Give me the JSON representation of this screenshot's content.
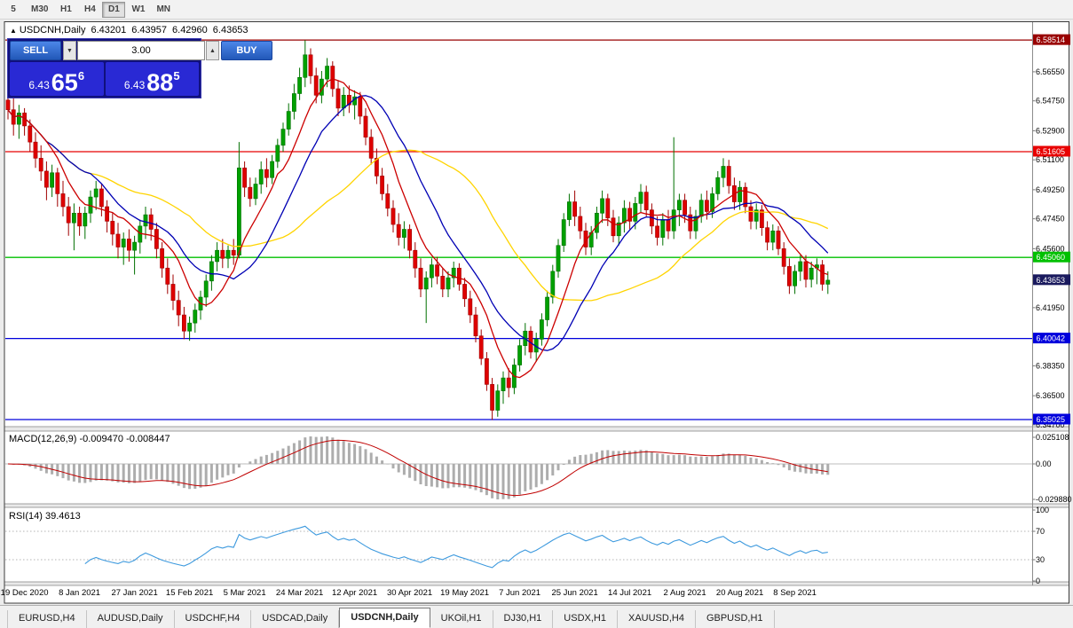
{
  "toolbar": {
    "timeframes": [
      "5",
      "M30",
      "H1",
      "H4",
      "D1",
      "W1",
      "MN"
    ],
    "active": "D1"
  },
  "symbol_header": {
    "icon": "▲",
    "symbol": "USDCNH,Daily",
    "open": "6.43201",
    "high": "6.43957",
    "low": "6.42960",
    "close": "6.43653"
  },
  "trade_panel": {
    "sell_label": "SELL",
    "buy_label": "BUY",
    "volume": "3.00",
    "spin_down": "▼",
    "spin_up": "▲",
    "sell_price": {
      "small": "6.43",
      "big": "65",
      "sup": "6"
    },
    "buy_price": {
      "small": "6.43",
      "big": "88",
      "sup": "5"
    }
  },
  "price_axis": {
    "ticks": [
      "6.56550",
      "6.54750",
      "6.52900",
      "6.51100",
      "6.49250",
      "6.47450",
      "6.45600",
      "6.41950",
      "6.38350",
      "6.36500",
      "6.34700"
    ]
  },
  "hlines": [
    {
      "price": 6.58514,
      "label": "6.58514",
      "color": "#990000"
    },
    {
      "price": 6.51605,
      "label": "6.51605",
      "color": "#E80000"
    },
    {
      "price": 6.4506,
      "label": "6.45060",
      "color": "#00C000"
    },
    {
      "price": 6.40042,
      "label": "6.40042",
      "color": "#0000DC"
    },
    {
      "price": 6.35025,
      "label": "6.35025",
      "color": "#0000DC"
    }
  ],
  "current_price": {
    "value": 6.43653,
    "label": "6.43653"
  },
  "macd": {
    "label": "MACD(12,26,9) -0.009470 -0.008447",
    "axis_labels": [
      "0.025108",
      "0.00",
      "-0.029880"
    ],
    "fast": 12,
    "slow": 26,
    "signal": 9
  },
  "rsi": {
    "label": "RSI(14) 39.4613",
    "axis_labels": [
      "100",
      "70",
      "30",
      "0"
    ],
    "period": 14,
    "levels": [
      70,
      30
    ]
  },
  "date_axis": [
    "19 Dec 2020",
    "8 Jan 2021",
    "27 Jan 2021",
    "15 Feb 2021",
    "5 Mar 2021",
    "24 Mar 2021",
    "12 Apr 2021",
    "30 Apr 2021",
    "19 May 2021",
    "7 Jun 2021",
    "25 Jun 2021",
    "14 Jul 2021",
    "2 Aug 2021",
    "20 Aug 2021",
    "8 Sep 2021"
  ],
  "tabs": {
    "items": [
      "EURUSD,H4",
      "AUDUSD,Daily",
      "USDCHF,H4",
      "USDCAD,Daily",
      "USDCNH,Daily",
      "UKOil,H1",
      "DJ30,H1",
      "USDX,H1",
      "XAUUSD,H4",
      "GBPUSD,H1"
    ],
    "active_index": 4
  },
  "colors": {
    "up_candle": "#00A000",
    "up_candle_border": "#007000",
    "down_candle": "#DE0000",
    "down_candle_border": "#A00000",
    "ma_fast": "#CC0000",
    "ma_mid": "#0000B4",
    "ma_slow": "#FFD400",
    "macd_histogram": "#ADADAD",
    "macd_signal": "#C00000",
    "rsi_line": "#3E9ADE",
    "current_price_box": "#1A1A5E",
    "axis_text": "#000000"
  },
  "chart_data": {
    "type": "candlestick",
    "symbol": "USDCNH",
    "timeframe": "Daily",
    "ohlc_header": {
      "open": 6.43201,
      "high": 6.43957,
      "low": 6.4296,
      "close": 6.43653
    },
    "y_range": {
      "top": 6.5962,
      "bottom": 6.3464
    },
    "x_label_first_index": 3,
    "x_label_every": 10,
    "moving_averages": [
      {
        "name": "MA fast",
        "period": 8,
        "color_key": "ma_fast"
      },
      {
        "name": "MA mid",
        "period": 16,
        "color_key": "ma_mid"
      },
      {
        "name": "MA slow",
        "period": 34,
        "color_key": "ma_slow"
      }
    ],
    "candles": [
      [
        6.548,
        6.553,
        6.536,
        6.542
      ],
      [
        6.542,
        6.549,
        6.526,
        6.533
      ],
      [
        6.533,
        6.545,
        6.524,
        6.54
      ],
      [
        6.54,
        6.543,
        6.526,
        6.532
      ],
      [
        6.532,
        6.536,
        6.516,
        6.522
      ],
      [
        6.522,
        6.528,
        6.506,
        6.512
      ],
      [
        6.512,
        6.52,
        6.498,
        6.504
      ],
      [
        6.504,
        6.51,
        6.486,
        6.494
      ],
      [
        6.494,
        6.508,
        6.488,
        6.503
      ],
      [
        6.503,
        6.506,
        6.482,
        6.49
      ],
      [
        6.49,
        6.498,
        6.476,
        6.482
      ],
      [
        6.482,
        6.488,
        6.464,
        6.472
      ],
      [
        6.472,
        6.484,
        6.455,
        6.478
      ],
      [
        6.478,
        6.482,
        6.464,
        6.47
      ],
      [
        6.47,
        6.482,
        6.462,
        6.478
      ],
      [
        6.478,
        6.492,
        6.472,
        6.488
      ],
      [
        6.488,
        6.498,
        6.48,
        6.493
      ],
      [
        6.493,
        6.496,
        6.476,
        6.482
      ],
      [
        6.482,
        6.486,
        6.466,
        6.473
      ],
      [
        6.473,
        6.478,
        6.458,
        6.465
      ],
      [
        6.465,
        6.472,
        6.45,
        6.457
      ],
      [
        6.457,
        6.466,
        6.446,
        6.462
      ],
      [
        6.462,
        6.468,
        6.448,
        6.455
      ],
      [
        6.455,
        6.464,
        6.44,
        6.46
      ],
      [
        6.46,
        6.474,
        6.453,
        6.47
      ],
      [
        6.47,
        6.482,
        6.462,
        6.477
      ],
      [
        6.477,
        6.481,
        6.461,
        6.468
      ],
      [
        6.468,
        6.472,
        6.45,
        6.456
      ],
      [
        6.456,
        6.46,
        6.438,
        6.444
      ],
      [
        6.444,
        6.45,
        6.428,
        6.434
      ],
      [
        6.434,
        6.44,
        6.418,
        6.424
      ],
      [
        6.424,
        6.43,
        6.408,
        6.415
      ],
      [
        6.415,
        6.42,
        6.4,
        6.405
      ],
      [
        6.405,
        6.414,
        6.399,
        6.41
      ],
      [
        6.41,
        6.422,
        6.404,
        6.418
      ],
      [
        6.418,
        6.43,
        6.412,
        6.426
      ],
      [
        6.426,
        6.44,
        6.42,
        6.436
      ],
      [
        6.436,
        6.452,
        6.43,
        6.448
      ],
      [
        6.448,
        6.46,
        6.442,
        6.455
      ],
      [
        6.455,
        6.462,
        6.444,
        6.45
      ],
      [
        6.45,
        6.458,
        6.444,
        6.455
      ],
      [
        6.455,
        6.462,
        6.446,
        6.452
      ],
      [
        6.452,
        6.522,
        6.45,
        6.506
      ],
      [
        6.506,
        6.51,
        6.488,
        6.494
      ],
      [
        6.494,
        6.5,
        6.482,
        6.487
      ],
      [
        6.487,
        6.5,
        6.483,
        6.496
      ],
      [
        6.496,
        6.51,
        6.49,
        6.505
      ],
      [
        6.505,
        6.512,
        6.494,
        6.5
      ],
      [
        6.5,
        6.514,
        6.496,
        6.51
      ],
      [
        6.51,
        6.524,
        6.506,
        6.52
      ],
      [
        6.52,
        6.534,
        6.516,
        6.53
      ],
      [
        6.53,
        6.546,
        6.526,
        6.541
      ],
      [
        6.541,
        6.558,
        6.536,
        6.552
      ],
      [
        6.552,
        6.568,
        6.548,
        6.562
      ],
      [
        6.562,
        6.585,
        6.556,
        6.576
      ],
      [
        6.576,
        6.58,
        6.558,
        6.563
      ],
      [
        6.563,
        6.568,
        6.546,
        6.551
      ],
      [
        6.551,
        6.566,
        6.546,
        6.561
      ],
      [
        6.561,
        6.574,
        6.556,
        6.569
      ],
      [
        6.569,
        6.572,
        6.55,
        6.555
      ],
      [
        6.555,
        6.56,
        6.538,
        6.543
      ],
      [
        6.543,
        6.556,
        6.538,
        6.551
      ],
      [
        6.551,
        6.557,
        6.54,
        6.545
      ],
      [
        6.545,
        6.554,
        6.536,
        6.55
      ],
      [
        6.55,
        6.553,
        6.533,
        6.538
      ],
      [
        6.538,
        6.543,
        6.52,
        6.525
      ],
      [
        6.525,
        6.53,
        6.508,
        6.512
      ],
      [
        6.512,
        6.518,
        6.496,
        6.501
      ],
      [
        6.501,
        6.506,
        6.486,
        6.49
      ],
      [
        6.49,
        6.496,
        6.476,
        6.481
      ],
      [
        6.481,
        6.486,
        6.466,
        6.471
      ],
      [
        6.471,
        6.478,
        6.458,
        6.463
      ],
      [
        6.463,
        6.473,
        6.456,
        6.468
      ],
      [
        6.468,
        6.471,
        6.45,
        6.455
      ],
      [
        6.455,
        6.46,
        6.438,
        6.444
      ],
      [
        6.444,
        6.45,
        6.426,
        6.431
      ],
      [
        6.431,
        6.442,
        6.41,
        6.438
      ],
      [
        6.438,
        6.45,
        6.432,
        6.446
      ],
      [
        6.446,
        6.451,
        6.434,
        6.439
      ],
      [
        6.439,
        6.444,
        6.426,
        6.431
      ],
      [
        6.431,
        6.442,
        6.426,
        6.438
      ],
      [
        6.438,
        6.448,
        6.432,
        6.444
      ],
      [
        6.444,
        6.447,
        6.43,
        6.434
      ],
      [
        6.434,
        6.438,
        6.42,
        6.425
      ],
      [
        6.425,
        6.43,
        6.41,
        6.415
      ],
      [
        6.415,
        6.42,
        6.398,
        6.402
      ],
      [
        6.402,
        6.406,
        6.384,
        6.388
      ],
      [
        6.388,
        6.392,
        6.368,
        6.372
      ],
      [
        6.372,
        6.376,
        6.35,
        6.356
      ],
      [
        6.356,
        6.372,
        6.352,
        6.368
      ],
      [
        6.368,
        6.38,
        6.36,
        6.376
      ],
      [
        6.376,
        6.382,
        6.364,
        6.37
      ],
      [
        6.37,
        6.388,
        6.366,
        6.384
      ],
      [
        6.384,
        6.4,
        6.38,
        6.396
      ],
      [
        6.396,
        6.41,
        6.39,
        6.405
      ],
      [
        6.405,
        6.408,
        6.388,
        6.392
      ],
      [
        6.392,
        6.404,
        6.386,
        6.4
      ],
      [
        6.4,
        6.416,
        6.396,
        6.412
      ],
      [
        6.412,
        6.43,
        6.408,
        6.426
      ],
      [
        6.426,
        6.446,
        6.422,
        6.442
      ],
      [
        6.442,
        6.462,
        6.438,
        6.458
      ],
      [
        6.458,
        6.478,
        6.454,
        6.474
      ],
      [
        6.474,
        6.49,
        6.47,
        6.485
      ],
      [
        6.485,
        6.492,
        6.47,
        6.476
      ],
      [
        6.476,
        6.482,
        6.462,
        6.467
      ],
      [
        6.467,
        6.472,
        6.452,
        6.457
      ],
      [
        6.457,
        6.47,
        6.452,
        6.466
      ],
      [
        6.466,
        6.482,
        6.462,
        6.478
      ],
      [
        6.478,
        6.492,
        6.472,
        6.487
      ],
      [
        6.487,
        6.49,
        6.47,
        6.475
      ],
      [
        6.475,
        6.48,
        6.46,
        6.464
      ],
      [
        6.464,
        6.476,
        6.458,
        6.472
      ],
      [
        6.472,
        6.486,
        6.466,
        6.481
      ],
      [
        6.481,
        6.485,
        6.468,
        6.473
      ],
      [
        6.473,
        6.488,
        6.468,
        6.484
      ],
      [
        6.484,
        6.496,
        6.478,
        6.491
      ],
      [
        6.491,
        6.495,
        6.476,
        6.48
      ],
      [
        6.48,
        6.484,
        6.465,
        6.47
      ],
      [
        6.47,
        6.476,
        6.458,
        6.463
      ],
      [
        6.463,
        6.478,
        6.458,
        6.474
      ],
      [
        6.474,
        6.48,
        6.462,
        6.467
      ],
      [
        6.467,
        6.525,
        6.462,
        6.48
      ],
      [
        6.48,
        6.49,
        6.47,
        6.486
      ],
      [
        6.486,
        6.49,
        6.472,
        6.477
      ],
      [
        6.477,
        6.482,
        6.462,
        6.467
      ],
      [
        6.467,
        6.48,
        6.462,
        6.476
      ],
      [
        6.476,
        6.49,
        6.472,
        6.486
      ],
      [
        6.486,
        6.492,
        6.474,
        6.479
      ],
      [
        6.479,
        6.494,
        6.475,
        6.49
      ],
      [
        6.49,
        6.504,
        6.486,
        6.5
      ],
      [
        6.5,
        6.512,
        6.494,
        6.507
      ],
      [
        6.507,
        6.511,
        6.49,
        6.495
      ],
      [
        6.495,
        6.5,
        6.48,
        6.485
      ],
      [
        6.485,
        6.498,
        6.48,
        6.494
      ],
      [
        6.494,
        6.497,
        6.478,
        6.482
      ],
      [
        6.482,
        6.486,
        6.468,
        6.473
      ],
      [
        6.473,
        6.484,
        6.468,
        6.48
      ],
      [
        6.48,
        6.483,
        6.464,
        6.469
      ],
      [
        6.469,
        6.473,
        6.455,
        6.46
      ],
      [
        6.46,
        6.471,
        6.455,
        6.467
      ],
      [
        6.467,
        6.47,
        6.452,
        6.456
      ],
      [
        6.456,
        6.46,
        6.44,
        6.445
      ],
      [
        6.445,
        6.45,
        6.428,
        6.433
      ],
      [
        6.433,
        6.446,
        6.428,
        6.442
      ],
      [
        6.442,
        6.452,
        6.436,
        6.448
      ],
      [
        6.448,
        6.452,
        6.432,
        6.437
      ],
      [
        6.437,
        6.448,
        6.432,
        6.444
      ],
      [
        6.444,
        6.45,
        6.434,
        6.446
      ],
      [
        6.446,
        6.449,
        6.43,
        6.434
      ],
      [
        6.434,
        6.442,
        6.428,
        6.4365
      ]
    ]
  }
}
